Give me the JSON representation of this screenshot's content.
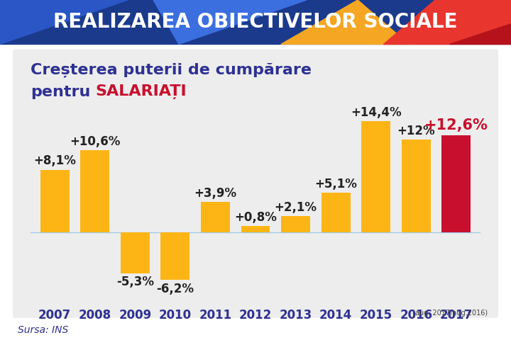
{
  "chart_data": {
    "type": "bar",
    "title": "REALIZAREA OBIECTIVELOR SOCIALE",
    "subtitle": {
      "lines": [
        "Creșterea puterii de cumpărare",
        "pentru"
      ],
      "highlight": "SALARIAȚI"
    },
    "categories": [
      "2007",
      "2008",
      "2009",
      "2010",
      "2011",
      "2012",
      "2013",
      "2014",
      "2015",
      "2016",
      "2017"
    ],
    "values": [
      8.1,
      10.6,
      -5.3,
      -6.2,
      3.9,
      0.8,
      2.1,
      5.1,
      14.4,
      12,
      12.6
    ],
    "value_labels": [
      "+8,1%",
      "+10,6%",
      "-5,3%",
      "-6,2%",
      "+3,9%",
      "+0,8%",
      "+2,1%",
      "+5,1%",
      "+14,4%",
      "+12%",
      "+12,6%"
    ],
    "colors": [
      "#FDB515",
      "#FDB515",
      "#FDB515",
      "#FDB515",
      "#FDB515",
      "#FDB515",
      "#FDB515",
      "#FDB515",
      "#FDB515",
      "#FDB515",
      "#C8102E"
    ],
    "data_labels": true,
    "tick_labels": "x",
    "grid": false,
    "note": "(aug. 2017/aug.2016)",
    "source": "Sursa: INS"
  }
}
